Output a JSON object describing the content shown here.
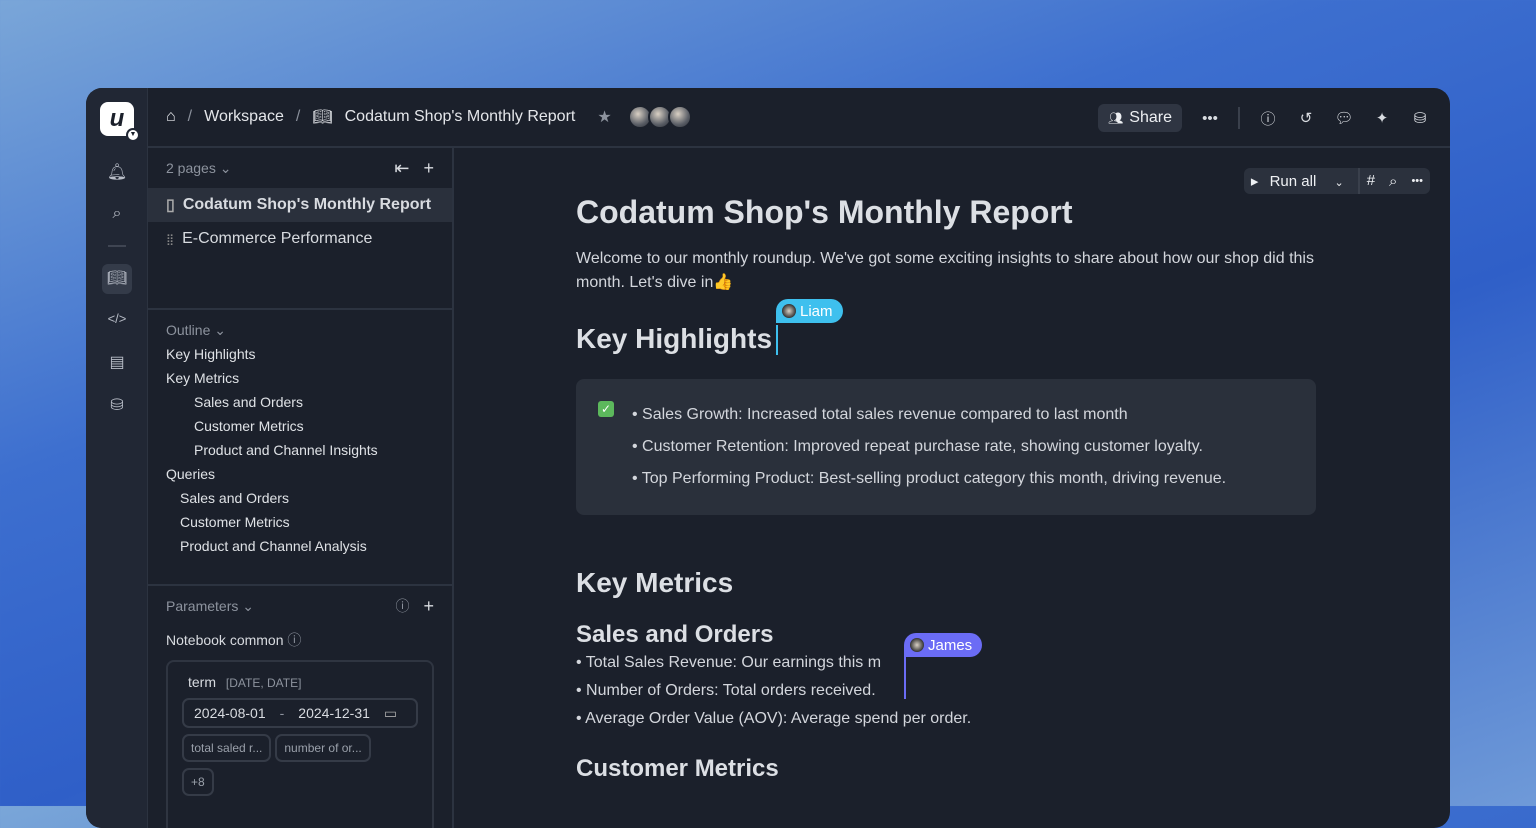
{
  "breadcrumb": {
    "home": "Home",
    "workspace": "Workspace",
    "doc": "Codatum Shop's Monthly Report"
  },
  "header": {
    "share": "Share",
    "more": "•••"
  },
  "sidebar": {
    "pages_label": "2 pages",
    "pages": [
      {
        "label": "Codatum Shop's Monthly Report",
        "icon": "document-icon"
      },
      {
        "label": "E-Commerce Performance",
        "icon": "grid-icon"
      }
    ],
    "outline_label": "Outline",
    "outline": [
      {
        "label": "Key Highlights",
        "level": 0
      },
      {
        "label": "Key Metrics",
        "level": 0
      },
      {
        "label": "Sales and Orders",
        "level": 2
      },
      {
        "label": "Customer Metrics",
        "level": 2
      },
      {
        "label": "Product and Channel Insights",
        "level": 2
      },
      {
        "label": "Queries",
        "level": 0
      },
      {
        "label": "Sales and Orders",
        "level": 1
      },
      {
        "label": "Customer Metrics",
        "level": 1
      },
      {
        "label": "Product and Channel Analysis",
        "level": 1
      }
    ],
    "parameters_label": "Parameters",
    "notebook_common": "Notebook common",
    "param": {
      "name": "term",
      "type": "[DATE, DATE]",
      "start": "2024-08-01",
      "dash": "-",
      "end": "2024-12-31",
      "chips": [
        "total saled r...",
        "number of or...",
        "+8"
      ]
    }
  },
  "toolbar": {
    "run_all": "Run all"
  },
  "doc": {
    "title": "Codatum Shop's Monthly Report",
    "intro": "Welcome to our monthly roundup. We've got some exciting insights to share about how our shop did this month. Let's dive in👍",
    "h_highlights": "Key Highlights",
    "highlights": [
      "Sales Growth: Increased total sales revenue compared to last month",
      "Customer Retention: Improved repeat purchase rate, showing customer loyalty.",
      "Top Performing Product: Best-selling product category this month, driving revenue."
    ],
    "h_metrics": "Key Metrics",
    "h_sales": "Sales and Orders",
    "sales": [
      "Total Sales Revenue: Our earnings this m",
      "Number of Orders: Total orders received.",
      "Average Order Value (AOV): Average spend per order."
    ],
    "h_customer": "Customer Metrics"
  },
  "collaborators": {
    "liam": "Liam",
    "james": "James",
    "liam_color": "#3ec0ee",
    "james_color": "#6b6cf5"
  }
}
